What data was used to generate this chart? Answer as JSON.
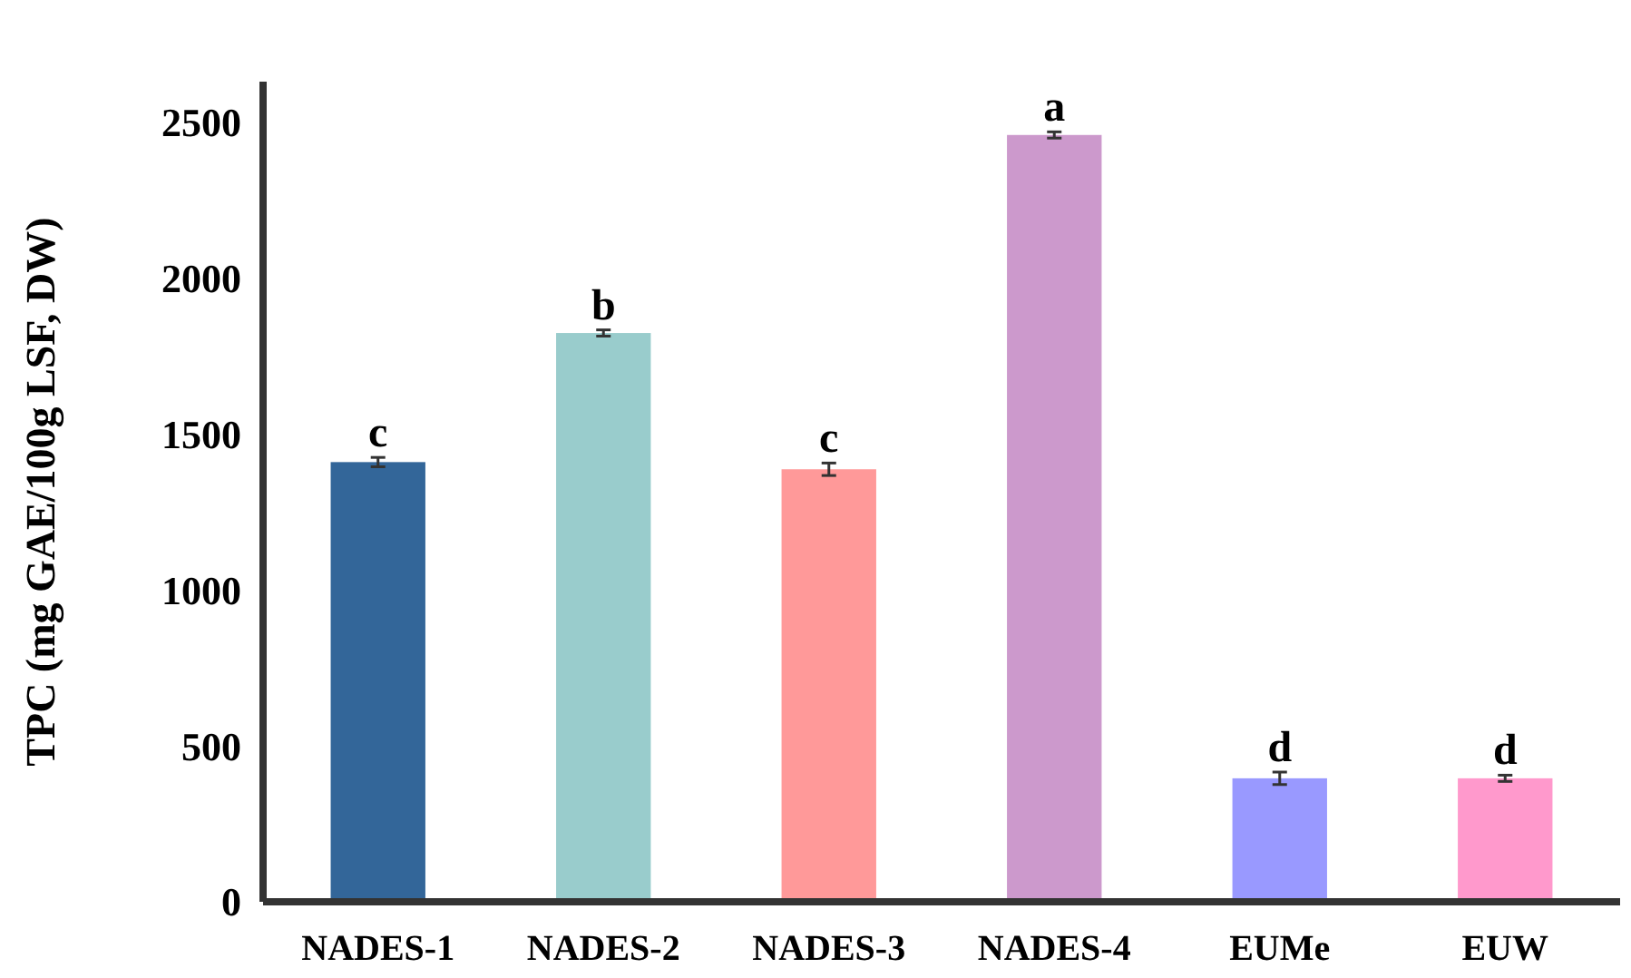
{
  "chart_data": {
    "type": "bar",
    "ylabel": "TPC (mg GAE/100g LSF, DW)",
    "categories": [
      "NADES-1",
      "NADES-2",
      "NADES-3",
      "NADES-4",
      "EUMe",
      "EUW"
    ],
    "values": [
      1410,
      1824,
      1387,
      2459,
      396,
      396
    ],
    "errors": [
      15,
      10,
      20,
      10,
      20,
      10
    ],
    "colors": [
      "#336699",
      "#99cccc",
      "#ff9999",
      "#cc99cc",
      "#9999ff",
      "#ff99cc"
    ],
    "ylim": [
      0,
      2630
    ],
    "yticks": [
      0,
      500,
      1000,
      1500,
      2000,
      2500
    ],
    "grid": false,
    "annotations": [
      {
        "text": "c",
        "x": "NADES-1",
        "y": 1425
      },
      {
        "text": "b",
        "x": "NADES-2",
        "y": 1834
      },
      {
        "text": "c",
        "x": "NADES-3",
        "y": 1407
      },
      {
        "text": "a",
        "x": "NADES-4",
        "y": 2469
      },
      {
        "text": "d",
        "x": "EUMe",
        "y": 416
      },
      {
        "text": "d",
        "x": "EUW",
        "y": 406
      }
    ]
  }
}
